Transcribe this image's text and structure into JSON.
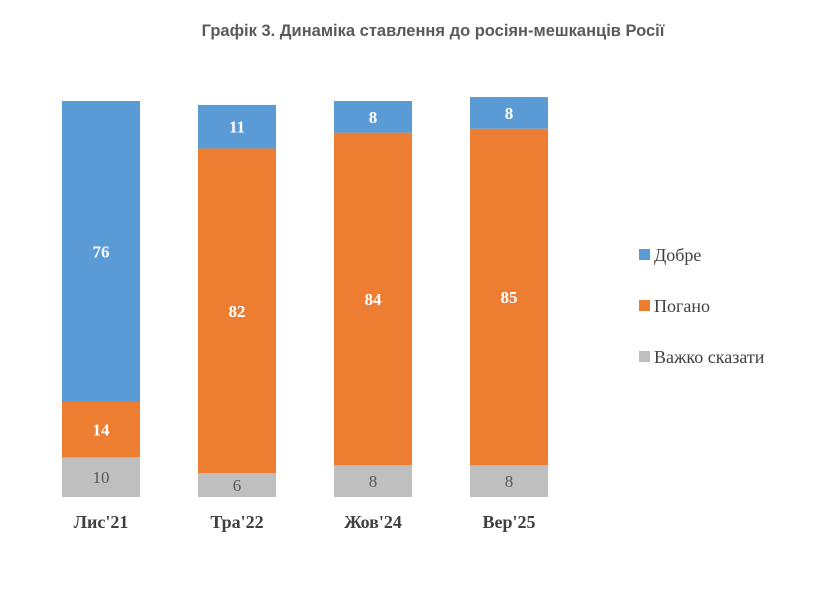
{
  "chart_data": {
    "type": "bar",
    "stacked": true,
    "stack_mode": "percent",
    "title": "Графік 3. Динаміка ставлення до росіян-мешканців Росії",
    "categories": [
      "Лис'21",
      "Тра'22",
      "Жов'24",
      "Вер'25"
    ],
    "series": [
      {
        "name": "Добре",
        "color": "#5B9BD5",
        "label_color": "#ffffff",
        "values": [
          76,
          11,
          8,
          8
        ]
      },
      {
        "name": "Погано",
        "color": "#ED7D31",
        "label_color": "#ffffff",
        "values": [
          14,
          82,
          84,
          85
        ]
      },
      {
        "name": "Важко сказати",
        "color": "#BFBFBF",
        "label_color": "#595959",
        "values": [
          10,
          6,
          8,
          8
        ]
      }
    ],
    "ylim": [
      0,
      100
    ],
    "xlabel": "",
    "ylabel": "",
    "grid": false,
    "legend_position": "right"
  }
}
